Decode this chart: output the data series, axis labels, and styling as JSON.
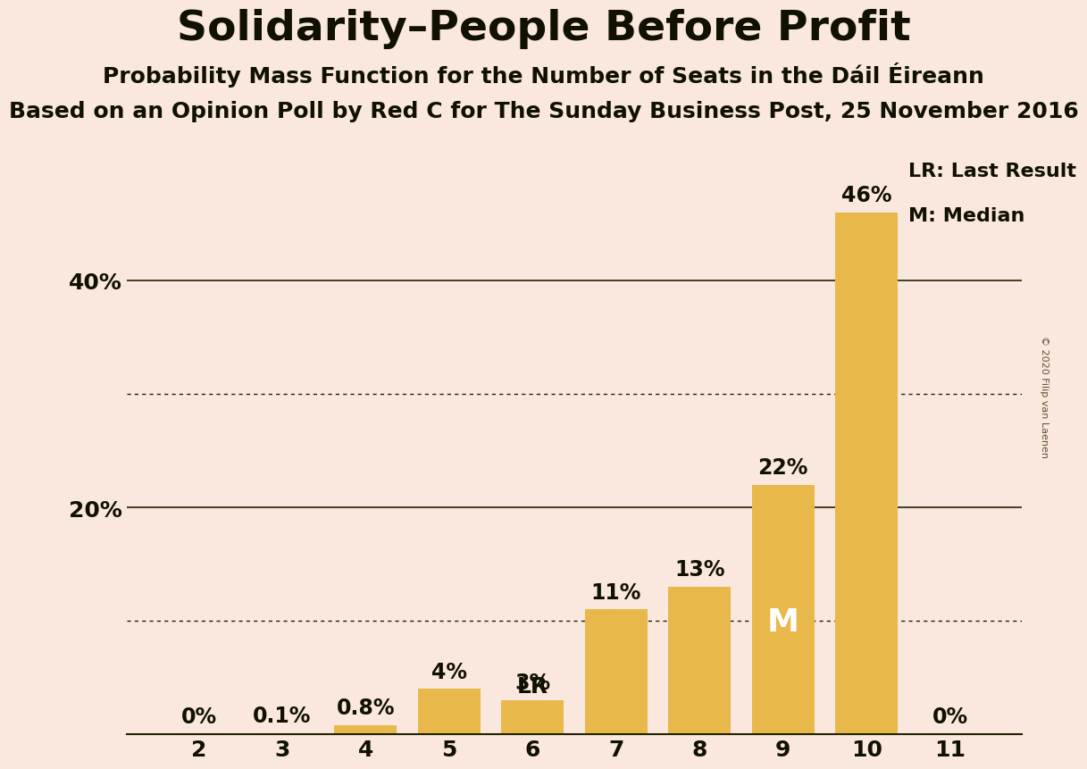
{
  "title": "Solidarity–People Before Profit",
  "subtitle1": "Probability Mass Function for the Number of Seats in the Dáil Éireann",
  "subtitle2": "Based on an Opinion Poll by Red C for The Sunday Business Post, 25 November 2016",
  "copyright": "© 2020 Filip van Laenen",
  "categories": [
    2,
    3,
    4,
    5,
    6,
    7,
    8,
    9,
    10,
    11
  ],
  "values": [
    0.0,
    0.1,
    0.8,
    4.0,
    3.0,
    11.0,
    13.0,
    22.0,
    46.0,
    0.0
  ],
  "bar_color": "#E8B84B",
  "background_color": "#FAE8DF",
  "label_color": "#111100",
  "bar_labels": [
    "0%",
    "0.1%",
    "0.8%",
    "4%",
    "3%",
    "11%",
    "13%",
    "22%",
    "46%",
    "0%"
  ],
  "lr_seat": 6,
  "median_seat": 9,
  "ylim": [
    0,
    52
  ],
  "dotted_lines": [
    10,
    30
  ],
  "solid_lines": [
    20,
    40
  ],
  "legend_lr_label": "LR: Last Result",
  "legend_m_label": "M: Median",
  "title_fontsize": 34,
  "subtitle1_fontsize": 18,
  "subtitle2_fontsize": 18,
  "bar_label_fontsize": 17,
  "tick_fontsize": 18,
  "ytick_vals": [
    20,
    40
  ],
  "ytick_labels": [
    "20%",
    "40%"
  ]
}
